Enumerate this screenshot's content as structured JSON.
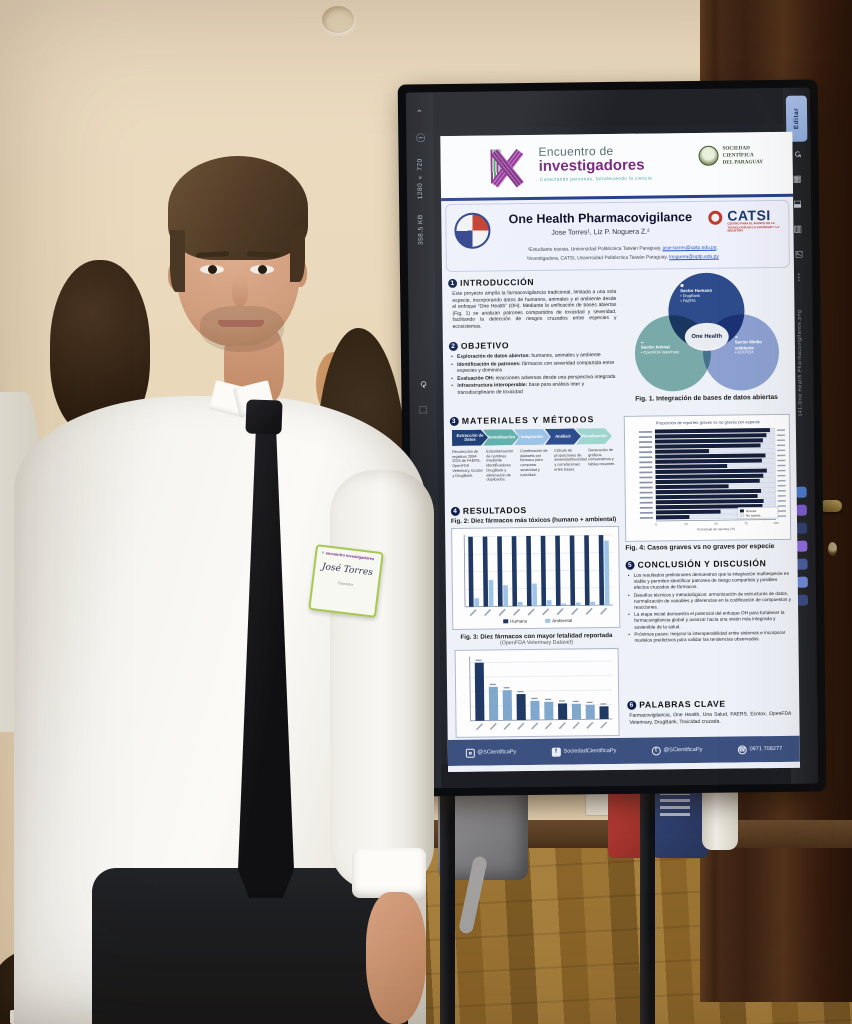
{
  "photo": {
    "badge": {
      "event_line": "encuentro investigadores",
      "name": "José Torres",
      "role": "Expositor"
    }
  },
  "screen_ui": {
    "edit_button": "Editar",
    "resolution": "1280 × 720",
    "file_size": "358.5 KB",
    "zoom_level": "133 %",
    "filename_vertical": "141-One Health Pharmacovigilance.png",
    "left_toolbar": [
      {
        "name": "back",
        "glyph": "‹"
      },
      {
        "name": "info",
        "glyph": "ⓘ"
      },
      {
        "name": "rotate",
        "glyph": "⟳"
      },
      {
        "name": "crop",
        "glyph": "⬚"
      },
      {
        "name": "slideshow",
        "glyph": "▶"
      },
      {
        "name": "zoom",
        "glyph": "⊖"
      }
    ],
    "right_toolbar": [
      {
        "name": "undo",
        "glyph": "↺"
      },
      {
        "name": "gallery",
        "glyph": "▦"
      },
      {
        "name": "split",
        "glyph": "◨"
      },
      {
        "name": "list",
        "glyph": "▤"
      },
      {
        "name": "select",
        "glyph": "☑"
      },
      {
        "name": "more",
        "glyph": "⋯"
      }
    ],
    "taskbar_colors": [
      "#4a79c9",
      "#7a5bd0",
      "#31406e",
      "#8d6ae0",
      "#4a5d9e",
      "#6f87d8",
      "#3b4a80"
    ]
  },
  "poster": {
    "event": {
      "number": "IX",
      "title_line1": "Encuentro de",
      "title_line2": "investigadores",
      "tagline": "Conectando personas, fortaleciendo la ciencia",
      "society_line1": "SOCIEDAD",
      "society_line2": "CIENTÍFICA",
      "society_line3": "DEL PARAGUAY"
    },
    "title": "One Health Pharmacovigilance",
    "authors": "Jose Torres¹, Liz P. Noguera Z.²",
    "affil1_pre": "¹Estudiante tesista, Universidad Politécnica Taiwán Paraguay, ",
    "affil1_email": "jose-torres@uptp.edu.py",
    "affil2_pre": "²Investigadora, CATSI, Universidad Politécnica Taiwán Paraguay, ",
    "affil2_email": "lnoguera@uptp.edu.py",
    "catsi": {
      "name": "CATSI",
      "subtitle": "CENTRO PARA EL AVANCE DE LA TECNOLOGÍA EN LA SOCIEDAD Y LA INDUSTRIA"
    },
    "sections": {
      "intro": {
        "num": "1",
        "heading": "INTRODUCCIÓN",
        "text": "Este proyecto amplía la farmacovigilancia tradicional, limitada a una sola especie, incorporando datos de humanos, animales y el ambiente desde el enfoque “One Health” (OH). Mediante la unificación de bases abiertas (Fig. 1) se analizan patrones compartidos de toxicidad y severidad, facilitando la detección de riesgos cruzados entre especies y ecosistemas."
      },
      "objetivo": {
        "num": "2",
        "heading": "OBJETIVO",
        "bullets": [
          {
            "lead": "Exploración de datos abiertos:",
            "rest": " humanos, animales y ambiente"
          },
          {
            "lead": "Identificación de patrones:",
            "rest": " fármacos con severidad compartida entre especies y dominios"
          },
          {
            "lead": "Evaluación OH:",
            "rest": " reacciones adversas desde una perspectiva integrada"
          },
          {
            "lead": "Infraestructura interoperable:",
            "rest": " base para análisis inter y transdisciplinario de toxicidad"
          }
        ]
      },
      "metodos": {
        "num": "3",
        "heading": "MATERIALES Y MÉTODOS",
        "steps": [
          {
            "label": "Extracción de Datos",
            "desc": "Recolección de registros 2004-2024 de FAERS, OpenFDA Veterinary, Ecotox y DrugBank."
          },
          {
            "label": "Normalización",
            "desc": "Estandarización de nombres mediante identificadores DrugBank y eliminación de duplicados."
          },
          {
            "label": "Integración",
            "desc": "Combinación de datasets por fármaco para comparar severidad y toxicidad."
          },
          {
            "label": "Análisis",
            "desc": "Cálculo de proporciones de severidad/toxicidad y correlaciones entre bases."
          },
          {
            "label": "Visualización",
            "desc": "Generación de gráficos comparativos y tablas resumen."
          }
        ]
      },
      "resultados": {
        "num": "4",
        "heading": "RESULTADOS"
      },
      "conclusion": {
        "num": "5",
        "heading": "CONCLUSIÓN Y DISCUSIÓN",
        "bullets": [
          "Los resultados preliminares demuestran que la integración multiespecie es viable y permiten identificar patrones de riesgo compartido y posibles efectos cruzados de fármacos.",
          "Desafíos técnicos y metodológicos: armonización de estructuras de datos, normalización de variables y diferencias en la codificación de compuestos y reacciones.",
          "La etapa inicial demuestra el potencial del enfoque OH para fortalecer la farmacovigilancia global y avanzar hacia una visión más integrada y sostenible de la salud.",
          "Próximos pasos: mejorar la interoperabilidad entre sistemas e incorporar modelos predictivos para validar las tendencias observadas."
        ]
      },
      "palabras": {
        "num": "6",
        "heading": "PALABRAS CLAVE",
        "text": "Farmacovigilancia, One Health, Una Salud, FAERS, Ecotox, OpenFDA Veterinary, DrugBank, Toxicidad cruzada."
      }
    },
    "footer": {
      "instagram": "@SCientificaPy",
      "facebook": "SociedadCientificaPy",
      "twitter": "@SCientificaPy",
      "phone": "0971 708277"
    },
    "colors": {
      "navy": "#1f3864",
      "teal": "#63b0ac",
      "light_blue": "#9dc3e6",
      "footer": "#3c5180"
    }
  },
  "chart_data": [
    {
      "type": "bar",
      "variant": "grouped",
      "caption": "Fig. 2: Diez fármacos más tóxicos (humano + ambiental)",
      "categories": [
        "",
        "",
        "",
        "",
        "",
        "",
        "",
        "",
        "",
        ""
      ],
      "categories_illegible": true,
      "series": [
        {
          "name": "Humano",
          "color": "#1f3864",
          "values": [
            100,
            100,
            100,
            100,
            100,
            100,
            100,
            100,
            100,
            100
          ]
        },
        {
          "name": "Ambiental",
          "color": "#9dc3e6",
          "values": [
            12,
            38,
            30,
            6,
            32,
            8,
            3,
            4,
            5,
            92
          ]
        }
      ],
      "ylim": [
        0,
        100
      ],
      "legend_position": "bottom"
    },
    {
      "type": "bar",
      "variant": "single",
      "caption": "Fig. 3: Diez fármacos con mayor letalidad reportada",
      "caption_sub": "(OpenFDA Veterinary Dataset)",
      "categories": [
        "",
        "",
        "",
        "",
        "",
        "",
        "",
        "",
        "",
        ""
      ],
      "categories_illegible": true,
      "values": [
        100,
        58,
        52,
        45,
        33,
        31,
        28,
        27,
        25,
        22
      ],
      "bar_colors": [
        "#1f3864",
        "#7fa8cc",
        "#7fa8cc",
        "#1f3864",
        "#7fa8cc",
        "#7fa8cc",
        "#1f3864",
        "#7fa8cc",
        "#7fa8cc",
        "#1f3864"
      ],
      "ylim": [
        0,
        100
      ]
    },
    {
      "type": "bar",
      "variant": "stacked-horizontal",
      "title": "Proporción de reportes graves vs no graves por especie",
      "caption": "Fig. 4: Casos graves vs no graves por especie",
      "xlabel": "Porcentaje de reportes (%)",
      "categories_illegible": true,
      "values_graves": [
        96,
        93,
        90,
        88,
        45,
        92,
        89,
        60,
        93,
        90,
        87,
        61,
        88,
        85,
        90,
        89,
        54,
        28
      ],
      "legend": [
        "Graves",
        "No graves"
      ],
      "colors": {
        "graves": "#16203c",
        "no_graves": "#e2e8f4"
      },
      "xlim": [
        0,
        100
      ]
    },
    {
      "type": "venn",
      "caption": "Fig. 1. Integración de bases de datos abiertas",
      "center": "One Health",
      "sets": [
        {
          "label1": "Sector",
          "label2": "Humano",
          "items": [
            "• DrugBank",
            "• FAERS"
          ],
          "color": "#31508f"
        },
        {
          "label1": "Sector",
          "label2": "Animal",
          "items": [
            "• OpenFDA Veterinary"
          ],
          "color": "#82b4ae"
        },
        {
          "label1": "Sector Medio",
          "label2": "ambiente",
          "items": [
            "• ECOTOX"
          ],
          "color": "#96abd7"
        }
      ]
    }
  ]
}
